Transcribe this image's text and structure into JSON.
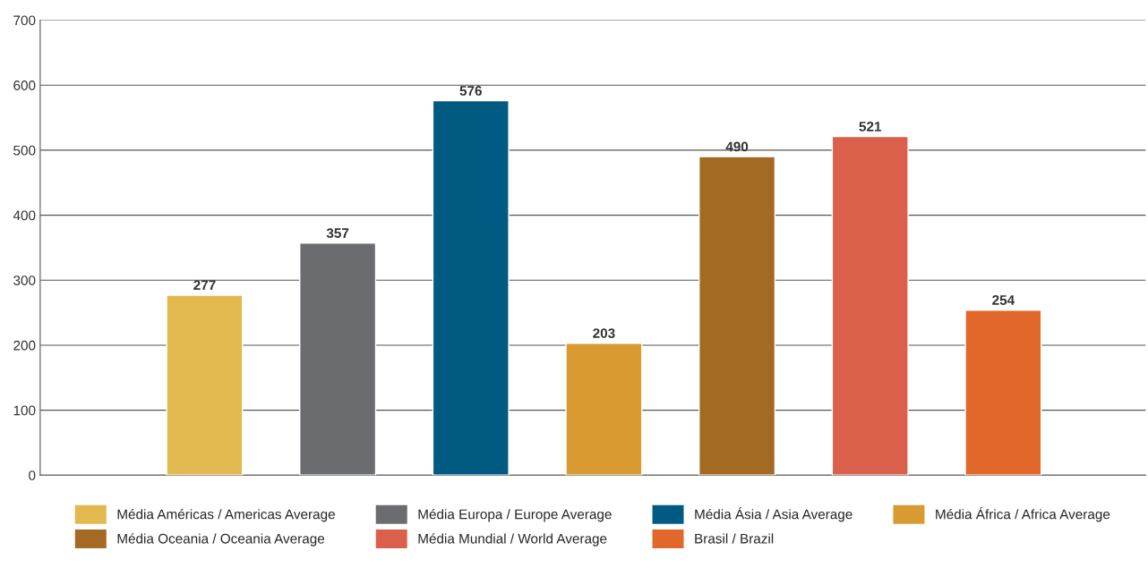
{
  "chart_data": {
    "type": "bar",
    "categories": [
      null
    ],
    "series": [
      {
        "name": "Média Américas / Americas Average",
        "color": "#e1b94e",
        "values": [
          277
        ]
      },
      {
        "name": "Média Europa / Europe Average",
        "color": "#6b6c70",
        "values": [
          357
        ]
      },
      {
        "name": "Média Ásia / Asia Average",
        "color": "#005a82",
        "values": [
          576
        ]
      },
      {
        "name": "Média África / Africa Average",
        "color": "#d99a32",
        "values": [
          203
        ]
      },
      {
        "name": "Média Oceania / Oceania Average",
        "color": "#a46a24",
        "values": [
          490
        ]
      },
      {
        "name": "Média Mundial / World Average",
        "color": "#db604c",
        "values": [
          521
        ]
      },
      {
        "name": "Brasil / Brazil",
        "color": "#e2672a",
        "values": [
          254
        ]
      }
    ],
    "ylim": [
      0,
      700
    ],
    "yticks": [
      0,
      100,
      200,
      300,
      400,
      500,
      600,
      700
    ],
    "grid": "y",
    "legend": "bottom",
    "data_labels": true
  }
}
